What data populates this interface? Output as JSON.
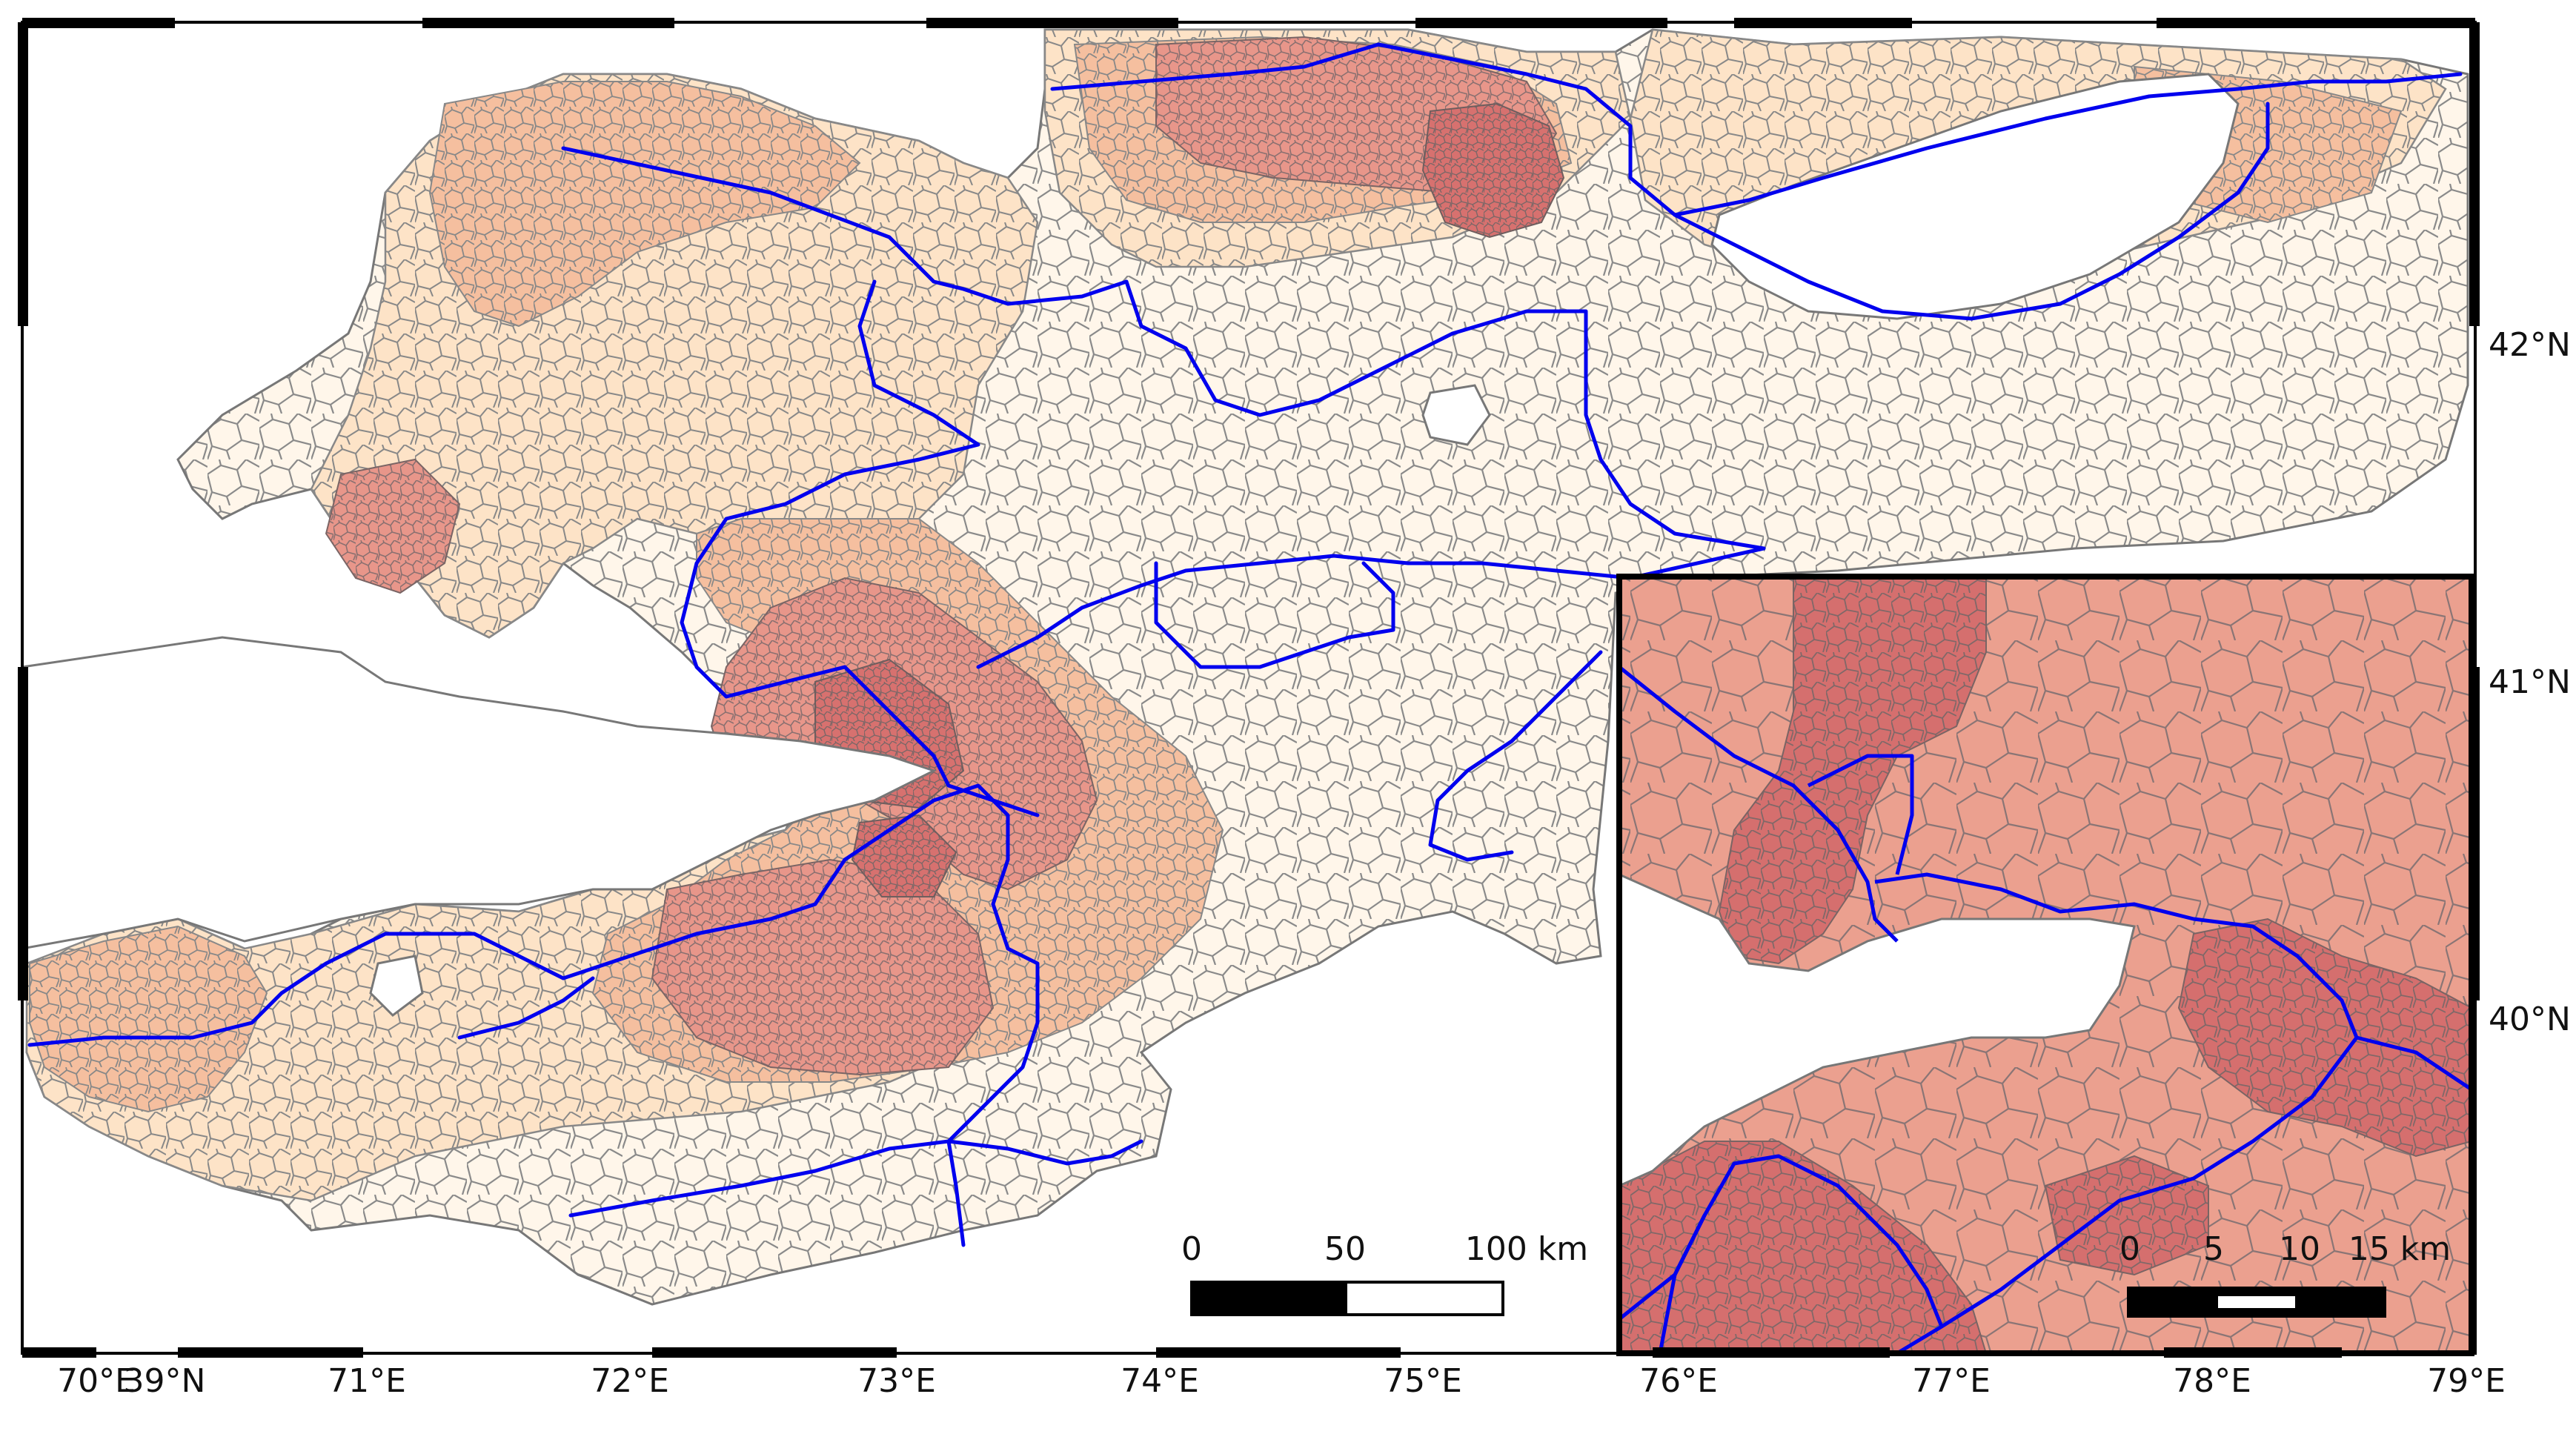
{
  "map": {
    "colors": {
      "background": "#ffffff",
      "frame": "#000000",
      "road": "#0000ee",
      "cell_border": "#7a7a7a",
      "cell_light": "#fff6ea",
      "cell_pale": "#fde6cd",
      "cell_mid": "#f6c3a3",
      "cell_salmon": "#e99a86",
      "cell_dark": "#d97473"
    },
    "lon_labels": [
      "70°E",
      "71°E",
      "72°E",
      "73°E",
      "74°E",
      "75°E",
      "76°E",
      "77°E",
      "78°E",
      "79°E"
    ],
    "lat_labels": [
      "42°N",
      "41°N",
      "40°N",
      "39°N"
    ],
    "scale_bar_main": {
      "labels": [
        "0",
        "50",
        "100 km"
      ]
    },
    "inset": {
      "scale_bar": {
        "labels": [
          "0",
          "5",
          "10",
          "15 km"
        ]
      }
    }
  }
}
